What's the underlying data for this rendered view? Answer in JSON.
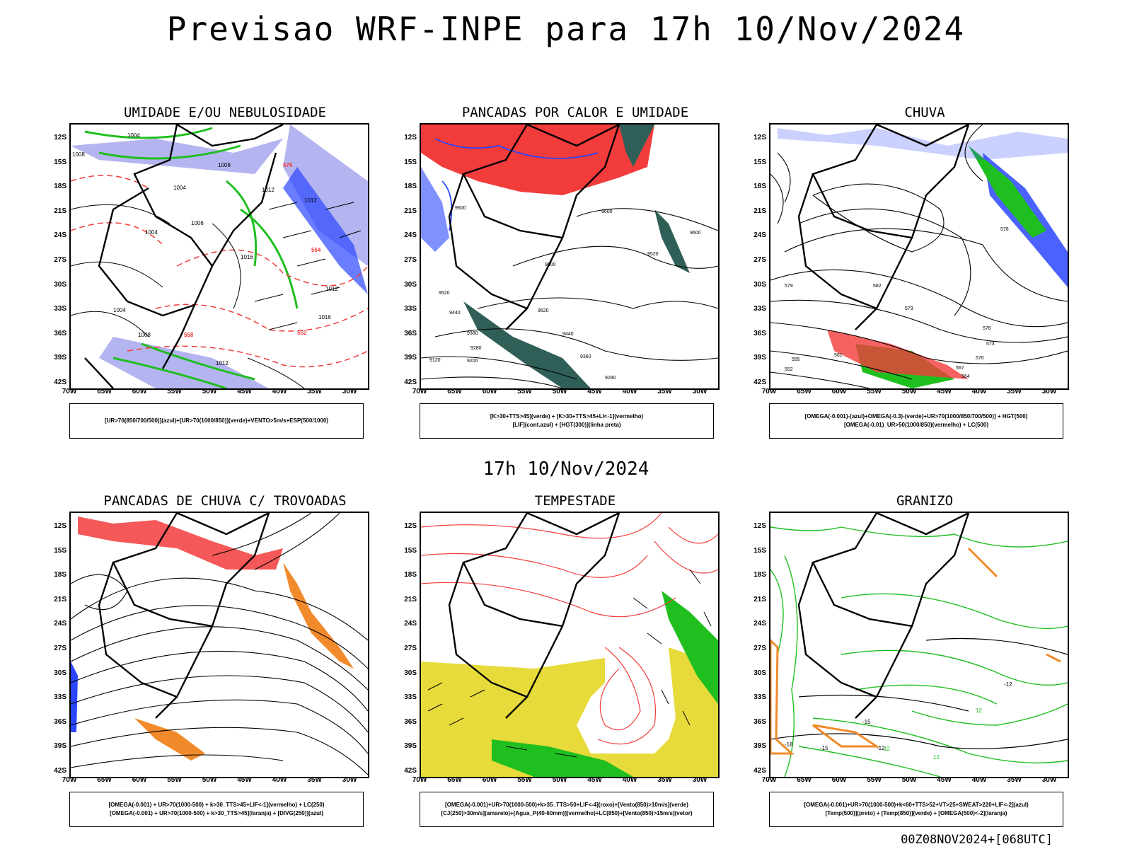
{
  "main_title": "Previsao WRF-INPE  para 17h 10/Nov/2024",
  "mid_title": "17h 10/Nov/2024",
  "footer": "00Z08NOV2024+[068UTC]",
  "lat_labels": [
    "12S",
    "15S",
    "18S",
    "21S",
    "24S",
    "27S",
    "30S",
    "33S",
    "36S",
    "39S",
    "42S"
  ],
  "lon_labels": [
    "70W",
    "65W",
    "60W",
    "55W",
    "50W",
    "45W",
    "40W",
    "35W",
    "30W"
  ],
  "panels": [
    {
      "title": "UMIDADE E/OU NEBULOSIDADE",
      "legend": [
        "[UR>70(850/700/500)](azul)+[UR>70(1000/850)](verde)+VENTO>5m/s+ESP(500/1000)"
      ],
      "labels": [
        "1004",
        "1008",
        "1004",
        "1006",
        "1004",
        "1008",
        "1012",
        "1016",
        "1012",
        "1016",
        "1012",
        "1004",
        "1008",
        "1012",
        "576",
        "564",
        "552",
        "558"
      ]
    },
    {
      "title": "PANCADAS POR CALOR E UMIDADE",
      "legend": [
        "[K>30+TTS>45](verde) + [K>30+TTS>45+LI<-1](vermelho)",
        "[LIF](cont.azul) + [HGT(300)](linha preta)"
      ],
      "labels": [
        "9600",
        "9600",
        "9600",
        "9520",
        "9600",
        "9520",
        "9440",
        "9520",
        "9440",
        "9360",
        "9280",
        "9360",
        "9280",
        "9120",
        "9200"
      ]
    },
    {
      "title": "CHUVA",
      "legend": [
        "[OMEGA(-0.001)-(azul)+OMEGA(-0.3)-(verde)+UR>70(1000/850/700/500)] + HGT(500)",
        "[OMEGA(-0.01)_UR>50(1000/850)(vermelho) + LC(500)"
      ],
      "labels": [
        "579",
        "576",
        "582",
        "579",
        "576",
        "573",
        "570",
        "567",
        "564",
        "561",
        "555",
        "552"
      ]
    },
    {
      "title": "PANCADAS DE CHUVA C/ TROVOADAS",
      "legend": [
        "[OMEGA(-0.001) + UR>70(1000-500) + k>30_TTS>45+LIF<-1](vermelho) + LC(250)",
        "[OMEGA(-0.001) + UR>70(1000-500) + k>30_TTS>45](laranja) + [DIVG(250)](azul)"
      ],
      "labels": []
    },
    {
      "title": "TEMPESTADE",
      "legend": [
        "[OMEGA(-0.001)+UR>70(1000-500)+k>35_TTS>50+LIF<-4](roxo)+[Vento(850)>10m/s](verde)",
        "[CJ(250)>30m/s](amarelo)+[Agua_P(40-60mm)](vermelho)+LC(850)+[Vento(850)>15m/s](vetor)"
      ],
      "labels": []
    },
    {
      "title": "GRANIZO",
      "legend": [
        "[OMEGA(-0.001)+UR>70(1000-500)+k<60+TTS>52+VT>25+SWEAT>220+LIF<-2](azul)",
        "[Temp(500)](preto) + [Temp(850)](verde) + [OMEGA(500)<-2](laranja)"
      ],
      "labels": [
        "-12",
        "-15",
        "-12",
        "-15",
        "12",
        "12",
        "-18",
        "12"
      ]
    }
  ],
  "colors": {
    "red": "#f23b3b",
    "green": "#1fbf1f",
    "blue": "#2b46ff",
    "lavender": "#b4b4f0",
    "darkgreen": "#2f5f57",
    "yellow": "#e6db3a",
    "orange": "#f08a2a",
    "purple": "#a020f0"
  }
}
